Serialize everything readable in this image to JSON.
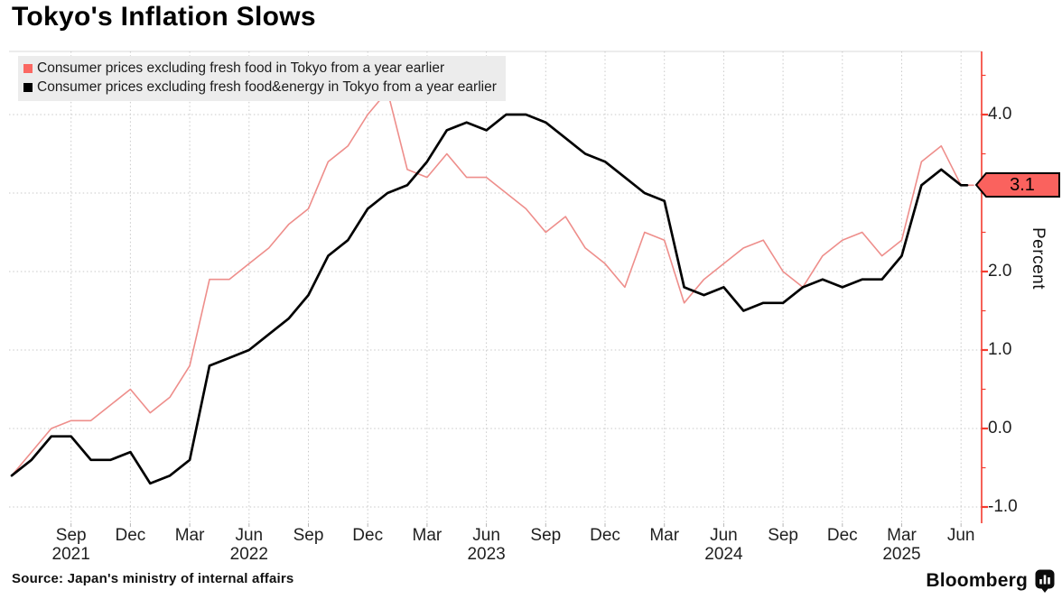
{
  "title": "Tokyo's Inflation Slows",
  "source": "Source: Japan's ministry of internal affairs",
  "brand": {
    "name": "Bloomberg",
    "icon": "bar-chart-bubble-icon"
  },
  "axis": {
    "y_label": "Percent"
  },
  "callout": {
    "label": "3.1",
    "color": "#fa625e"
  },
  "legend": {
    "items": [
      {
        "label": "Consumer prices excluding fresh food in Tokyo from a year earlier",
        "color": "#fb6862"
      },
      {
        "label": "Consumer prices excluding fresh food&energy in Tokyo from a year earlier",
        "color": "#000000"
      }
    ]
  },
  "colors": {
    "grid": "#c9c9c9",
    "plot_top_border": "#d9d9d9",
    "axis_red": "#f43b2f",
    "red_line": "#ee8e8b",
    "black_line": "#0a0a0a",
    "legend_bg": "#ececec"
  },
  "chart_data": {
    "type": "line",
    "title": "Tokyo's Inflation Slows",
    "xlabel": "",
    "ylabel": "Percent",
    "x_start": "2021-06",
    "x_end": "2025-06",
    "x_step": "1 month",
    "n_points": 49,
    "ylim": [
      -1.2,
      4.85
    ],
    "grid": true,
    "legend_position": "top-left",
    "y_axis_side": "right",
    "y_ticks": [
      {
        "v": 4,
        "label": "4.0"
      },
      {
        "v": 3,
        "label": "3.0"
      },
      {
        "v": 2,
        "label": "2.0"
      },
      {
        "v": 1,
        "label": "1.0"
      },
      {
        "v": 0,
        "label": "0.0"
      },
      {
        "v": -1,
        "label": "-1.0"
      }
    ],
    "y_minor_ticks": [
      4.5,
      3.5,
      2.5,
      1.5,
      0.5,
      -0.5
    ],
    "x_ticks": [
      {
        "m": 3,
        "label": "Sep",
        "year": "2021"
      },
      {
        "m": 6,
        "label": "Dec"
      },
      {
        "m": 9,
        "label": "Mar"
      },
      {
        "m": 12,
        "label": "Jun",
        "year": "2022"
      },
      {
        "m": 15,
        "label": "Sep"
      },
      {
        "m": 18,
        "label": "Dec"
      },
      {
        "m": 21,
        "label": "Mar"
      },
      {
        "m": 24,
        "label": "Jun",
        "year": "2023"
      },
      {
        "m": 27,
        "label": "Sep"
      },
      {
        "m": 30,
        "label": "Dec"
      },
      {
        "m": 33,
        "label": "Mar"
      },
      {
        "m": 36,
        "label": "Jun",
        "year": "2024"
      },
      {
        "m": 39,
        "label": "Sep"
      },
      {
        "m": 42,
        "label": "Dec"
      },
      {
        "m": 45,
        "label": "Mar",
        "year": "2025"
      },
      {
        "m": 48,
        "label": "Jun"
      }
    ],
    "series": [
      {
        "name": "Consumer prices excluding fresh food in Tokyo from a year earlier",
        "color": "#ee8e8b",
        "width": 1.6,
        "values": [
          -0.6,
          -0.3,
          0.0,
          0.1,
          0.1,
          0.3,
          0.5,
          0.2,
          0.4,
          0.8,
          1.9,
          1.9,
          2.1,
          2.3,
          2.6,
          2.8,
          3.4,
          3.6,
          4.0,
          4.3,
          3.3,
          3.2,
          3.5,
          3.2,
          3.2,
          3.0,
          2.8,
          2.5,
          2.7,
          2.3,
          2.1,
          1.8,
          2.5,
          2.4,
          1.6,
          1.9,
          2.1,
          2.3,
          2.4,
          2.0,
          1.8,
          2.2,
          2.4,
          2.5,
          2.2,
          2.4,
          3.4,
          3.6,
          3.1
        ]
      },
      {
        "name": "Consumer prices excluding fresh food&energy in Tokyo from a year earlier",
        "color": "#000000",
        "width": 2.7,
        "values": [
          -0.6,
          -0.4,
          -0.1,
          -0.1,
          -0.4,
          -0.4,
          -0.3,
          -0.7,
          -0.6,
          -0.4,
          0.8,
          0.9,
          1.0,
          1.2,
          1.4,
          1.7,
          2.2,
          2.4,
          2.8,
          3.0,
          3.1,
          3.4,
          3.8,
          3.9,
          3.8,
          4.0,
          4.0,
          3.9,
          3.7,
          3.5,
          3.4,
          3.2,
          3.0,
          2.9,
          1.8,
          1.7,
          1.8,
          1.5,
          1.6,
          1.6,
          1.8,
          1.9,
          1.8,
          1.9,
          1.9,
          2.2,
          3.1,
          3.3,
          3.1
        ]
      }
    ],
    "end_label": {
      "series_index": 0,
      "value": 3.1,
      "text": "3.1"
    }
  }
}
